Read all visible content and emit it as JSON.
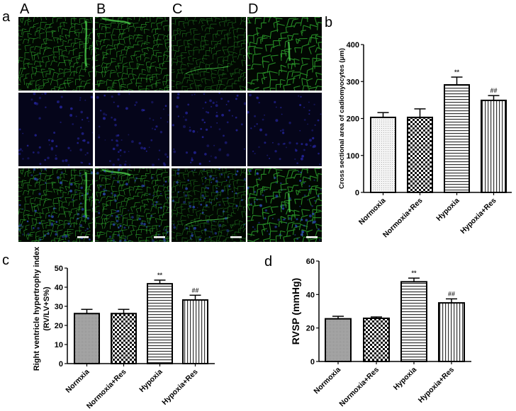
{
  "figure": {
    "panel_labels": {
      "a": "a",
      "b": "b",
      "c": "c",
      "d": "d"
    },
    "microscopy": {
      "columns": [
        "A",
        "B",
        "C",
        "D"
      ],
      "rows": [
        "green-membrane-stain",
        "blue-nuclear-stain",
        "merged"
      ],
      "scale_bar": true,
      "colors": {
        "green": "#2fae2f",
        "blue": "#1a1a8a",
        "background": "#000000"
      }
    }
  },
  "chart_data": [
    {
      "id": "b",
      "type": "bar",
      "title": "",
      "xlabel": "",
      "ylabel": "Cross sectional area of cadiomyocytes (μm)",
      "categories": [
        "Normoxia",
        "Normoxia+Res",
        "Hypoxia",
        "Hypoxia+Res"
      ],
      "values": [
        203,
        203,
        291,
        249
      ],
      "errors": [
        13,
        23,
        21,
        13
      ],
      "annotations": [
        "",
        "",
        "**",
        "##"
      ],
      "ylim": [
        0,
        400
      ],
      "yticks": [
        0,
        100,
        200,
        300,
        400
      ],
      "patterns": [
        "dots",
        "checker",
        "horizontal-lines",
        "vertical-lines"
      ],
      "grid": false,
      "legend": "none"
    },
    {
      "id": "c",
      "type": "bar",
      "title": "",
      "xlabel": "",
      "ylabel": "Right ventricle hypertrophy index (RV/LV+S%)",
      "ylabel_lines": [
        "Right ventricle hypertrophy index",
        "(RV/LV+S%)"
      ],
      "categories": [
        "Normxia",
        "Normoxia+Res",
        "Hypoxia",
        "Hypoxia+Res"
      ],
      "values": [
        26.2,
        26.2,
        41.8,
        33.3
      ],
      "errors": [
        2.2,
        2.2,
        1.9,
        2.5
      ],
      "annotations": [
        "",
        "",
        "**",
        "##"
      ],
      "ylim": [
        0,
        50
      ],
      "yticks": [
        0,
        10,
        20,
        30,
        40,
        50
      ],
      "patterns": [
        "fine-dots",
        "checker",
        "horizontal-lines",
        "vertical-lines"
      ],
      "grid": false,
      "legend": "none"
    },
    {
      "id": "d",
      "type": "bar",
      "title": "",
      "xlabel": "",
      "ylabel": "RVSP (mmHg)",
      "categories": [
        "Normoxia",
        "Normoxia+Res",
        "Hypoxia",
        "Hypoxia+Res"
      ],
      "values": [
        25.5,
        25.8,
        47.6,
        35.0
      ],
      "errors": [
        1.5,
        0.8,
        2.2,
        2.4
      ],
      "annotations": [
        "",
        "",
        "**",
        "##"
      ],
      "ylim": [
        0,
        60
      ],
      "yticks": [
        0,
        20,
        40,
        60
      ],
      "patterns": [
        "fine-dots",
        "checker",
        "horizontal-lines",
        "vertical-lines"
      ],
      "grid": false,
      "legend": "none"
    }
  ]
}
